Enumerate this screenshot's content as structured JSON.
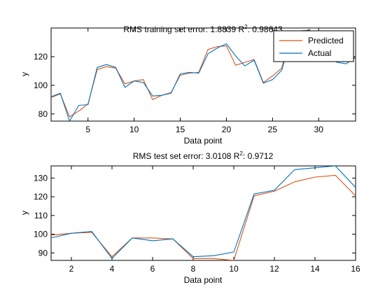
{
  "colors": {
    "predicted": "#d95319",
    "actual": "#0072bd",
    "axes": "#000000",
    "background": "#ffffff"
  },
  "chart_data": [
    {
      "type": "line",
      "title": "RMS training set error: 1.8839  R",
      "title_sup": "2",
      "title_tail": ": 0.98643",
      "xlabel": "Data point",
      "ylabel": "y",
      "xlim": [
        1,
        34
      ],
      "ylim": [
        75,
        140
      ],
      "xticks": [
        5,
        10,
        15,
        20,
        25,
        30
      ],
      "yticks": [
        80,
        100,
        120
      ],
      "grid": false,
      "legend": {
        "position": "top-right",
        "entries": [
          "Predicted",
          "Actual"
        ]
      },
      "x": [
        1,
        2,
        3,
        4,
        5,
        6,
        7,
        8,
        9,
        10,
        11,
        12,
        13,
        14,
        15,
        16,
        17,
        18,
        19,
        20,
        21,
        22,
        23,
        24,
        25,
        26,
        27,
        28,
        29,
        30,
        31,
        32,
        33,
        34
      ],
      "series": [
        {
          "name": "Predicted",
          "values": [
            91.5,
            94,
            78,
            82,
            87,
            111,
            113,
            112,
            101,
            103,
            104,
            90,
            93,
            95,
            107,
            108.5,
            109,
            125,
            127,
            127.5,
            114,
            116,
            118,
            102,
            106.5,
            112,
            137,
            138,
            138.5,
            128,
            122,
            117,
            117,
            119
          ]
        },
        {
          "name": "Actual",
          "values": [
            92,
            94.5,
            75,
            86,
            86.5,
            112.5,
            114.5,
            112.5,
            98.5,
            103,
            102,
            92.5,
            93,
            94.5,
            108,
            109,
            108.5,
            122,
            126,
            129,
            120.5,
            113.5,
            117.5,
            101.5,
            104,
            110.5,
            133,
            136.5,
            139,
            127,
            121,
            116,
            115,
            120
          ]
        }
      ]
    },
    {
      "type": "line",
      "title": "RMS test set error: 3.0108  R",
      "title_sup": "2",
      "title_tail": ": 0.9712",
      "xlabel": "Data point",
      "ylabel": "y",
      "xlim": [
        1,
        16
      ],
      "ylim": [
        86,
        136.5
      ],
      "xticks": [
        2,
        4,
        6,
        8,
        10,
        12,
        14,
        16
      ],
      "yticks": [
        90,
        100,
        110,
        120,
        130
      ],
      "grid": false,
      "legend": null,
      "x": [
        1,
        2,
        3,
        4,
        5,
        6,
        7,
        8,
        9,
        10,
        11,
        12,
        13,
        14,
        15,
        16
      ],
      "series": [
        {
          "name": "Predicted",
          "values": [
            99.5,
            100.5,
            101,
            88,
            98,
            98,
            97.5,
            87,
            87,
            86,
            120.5,
            123,
            128,
            130.5,
            131.5,
            120.5
          ]
        },
        {
          "name": "Actual",
          "values": [
            98,
            100.5,
            101.5,
            87,
            98,
            96.5,
            97.5,
            88,
            88.5,
            90.5,
            121.5,
            123.5,
            134.5,
            135.5,
            136.5,
            125
          ]
        }
      ]
    }
  ]
}
